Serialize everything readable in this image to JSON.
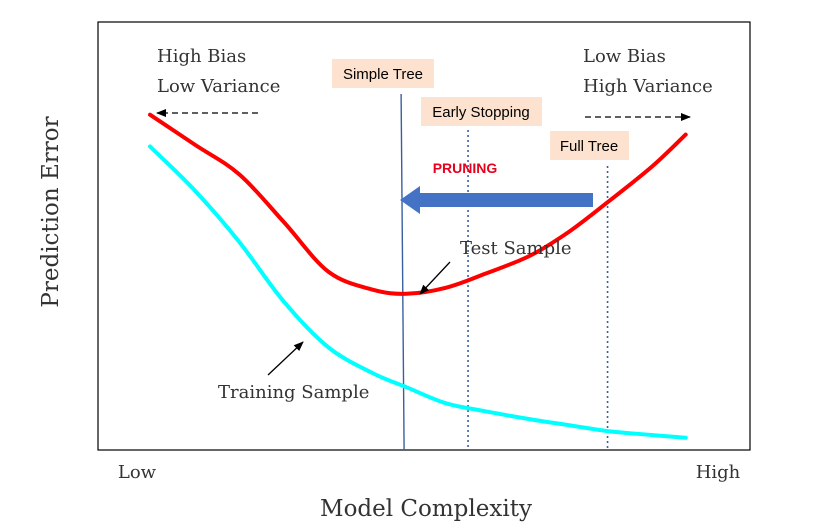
{
  "chart_data": {
    "type": "line",
    "title": "",
    "xlabel": "Model Complexity",
    "ylabel": "Prediction Error",
    "x_ticks": {
      "low": "Low",
      "high": "High"
    },
    "xlim": [
      0,
      10
    ],
    "ylim": [
      0,
      10
    ],
    "grid": false,
    "series": [
      {
        "name": "Test Sample",
        "color": "#ff0000",
        "x": [
          0,
          0.8,
          1.6,
          2.4,
          3.2,
          4.0,
          4.6,
          5.3,
          6.0,
          6.8,
          7.5,
          8.2,
          9.0,
          9.6
        ],
        "y": [
          8.3,
          7.55,
          6.8,
          5.6,
          4.35,
          3.9,
          3.8,
          3.95,
          4.3,
          4.75,
          5.35,
          6.1,
          7.0,
          7.8
        ]
      },
      {
        "name": "Training Sample",
        "color": "#00ffff",
        "x": [
          0,
          0.8,
          1.6,
          2.4,
          3.2,
          4.0,
          4.6,
          5.3,
          6.0,
          6.8,
          7.5,
          8.2,
          9.0,
          9.6
        ],
        "y": [
          7.5,
          6.4,
          5.1,
          3.6,
          2.45,
          1.8,
          1.45,
          1.05,
          0.85,
          0.65,
          0.5,
          0.35,
          0.25,
          0.18
        ]
      }
    ],
    "vertical_lines": [
      {
        "name": "simple-tree-line",
        "label": "Simple Tree",
        "x": 4.5,
        "color": "#3a5fa0",
        "style": "solid"
      },
      {
        "name": "early-stopping-line",
        "label": "Early Stopping",
        "x": 5.7,
        "color": "#3a5fa0",
        "style": "dotted"
      },
      {
        "name": "full-tree-line",
        "label": "Full Tree",
        "x": 8.2,
        "color": "#3a5fa0",
        "style": "dotted"
      }
    ],
    "annotations": {
      "left_bias": "High Bias",
      "left_variance": "Low Variance",
      "right_bias": "Low Bias",
      "right_variance": "High Variance",
      "pruning": "PRUNING",
      "test_sample": "Test Sample",
      "training_sample": "Training Sample"
    },
    "colors": {
      "label_box_fill": "#fde3cf",
      "pruning_text": "#e8001c",
      "pruning_arrow": "#4472c4"
    }
  }
}
